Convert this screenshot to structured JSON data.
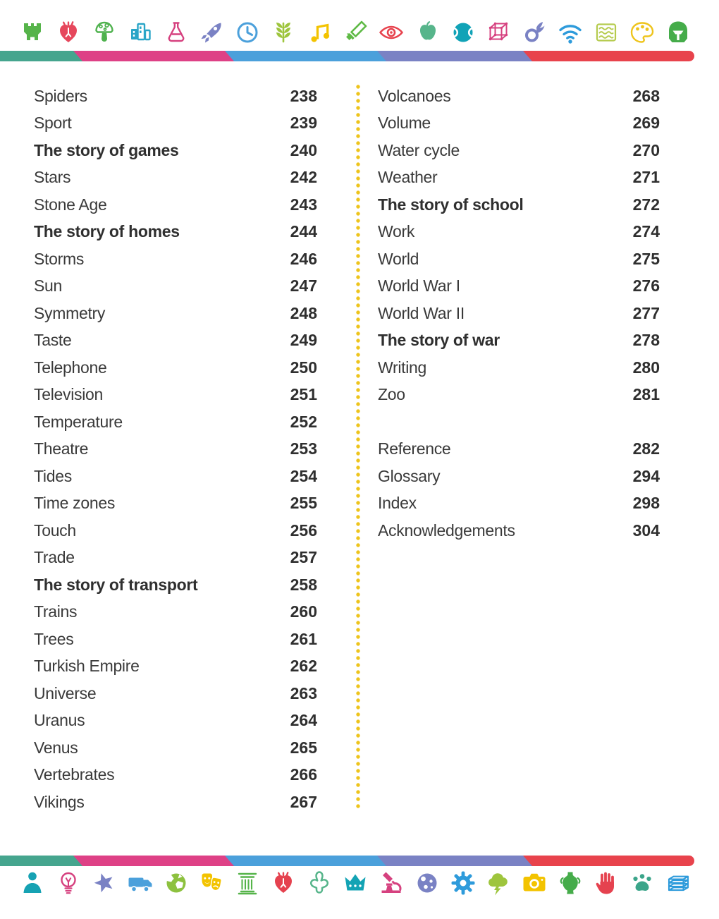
{
  "decor": {
    "stripe_colors": [
      "#45A58E",
      "#DE4186",
      "#4BA0DB",
      "#7A82C4",
      "#E8434C"
    ],
    "divider_dot_color": "#EEC41C"
  },
  "top_icons": [
    {
      "name": "castle",
      "color": "#56B44A"
    },
    {
      "name": "anatomical-heart",
      "color": "#E6475C"
    },
    {
      "name": "mushroom",
      "color": "#4FB24E"
    },
    {
      "name": "buildings",
      "color": "#29A5C7"
    },
    {
      "name": "flask",
      "color": "#D6417F"
    },
    {
      "name": "rocket",
      "color": "#7A82C4"
    },
    {
      "name": "clock",
      "color": "#4BA0DB"
    },
    {
      "name": "wheat",
      "color": "#9EC53D"
    },
    {
      "name": "music-note",
      "color": "#F3C300"
    },
    {
      "name": "sword",
      "color": "#5FBA46"
    },
    {
      "name": "eye",
      "color": "#E7434E"
    },
    {
      "name": "apple",
      "color": "#57B58B"
    },
    {
      "name": "ball",
      "color": "#11A3B7"
    },
    {
      "name": "cube",
      "color": "#D6417F"
    },
    {
      "name": "comet",
      "color": "#7A82C4"
    },
    {
      "name": "wifi",
      "color": "#2E9BDB"
    },
    {
      "name": "water-waves",
      "color": "#B5CB4D"
    },
    {
      "name": "palette",
      "color": "#EEC41C"
    },
    {
      "name": "helmet",
      "color": "#45AC4A"
    }
  ],
  "bottom_icons": [
    {
      "name": "person",
      "color": "#16A2B3"
    },
    {
      "name": "lightbulb",
      "color": "#D6417F"
    },
    {
      "name": "star",
      "color": "#7A82C4"
    },
    {
      "name": "truck",
      "color": "#4BA0DB"
    },
    {
      "name": "globe",
      "color": "#8DC13F"
    },
    {
      "name": "theatre-masks",
      "color": "#F3C300"
    },
    {
      "name": "column",
      "color": "#56B44A"
    },
    {
      "name": "anatomical-heart",
      "color": "#E5424F"
    },
    {
      "name": "footprint",
      "color": "#57B58B"
    },
    {
      "name": "crown",
      "color": "#13A3B4"
    },
    {
      "name": "microscope",
      "color": "#D6417F"
    },
    {
      "name": "moon",
      "color": "#7A82C4"
    },
    {
      "name": "gear",
      "color": "#2E9BDB"
    },
    {
      "name": "storm-cloud",
      "color": "#9EC53D"
    },
    {
      "name": "camera",
      "color": "#F3C300"
    },
    {
      "name": "vase",
      "color": "#45AC4A"
    },
    {
      "name": "hand",
      "color": "#E5424F"
    },
    {
      "name": "paw",
      "color": "#3BA58A"
    },
    {
      "name": "book-stack",
      "color": "#2E9BDB"
    }
  ],
  "toc": {
    "left_entries": [
      {
        "label": "Spiders",
        "page": "238",
        "bold": false
      },
      {
        "label": "Sport",
        "page": "239",
        "bold": false
      },
      {
        "label": "The story of games",
        "page": "240",
        "bold": true
      },
      {
        "label": "Stars",
        "page": "242",
        "bold": false
      },
      {
        "label": "Stone Age",
        "page": "243",
        "bold": false
      },
      {
        "label": "The story of homes",
        "page": "244",
        "bold": true
      },
      {
        "label": "Storms",
        "page": "246",
        "bold": false
      },
      {
        "label": "Sun",
        "page": "247",
        "bold": false
      },
      {
        "label": "Symmetry",
        "page": "248",
        "bold": false
      },
      {
        "label": "Taste",
        "page": "249",
        "bold": false
      },
      {
        "label": "Telephone",
        "page": "250",
        "bold": false
      },
      {
        "label": "Television",
        "page": "251",
        "bold": false
      },
      {
        "label": "Temperature",
        "page": "252",
        "bold": false
      },
      {
        "label": "Theatre",
        "page": "253",
        "bold": false
      },
      {
        "label": "Tides",
        "page": "254",
        "bold": false
      },
      {
        "label": "Time zones",
        "page": "255",
        "bold": false
      },
      {
        "label": "Touch",
        "page": "256",
        "bold": false
      },
      {
        "label": "Trade",
        "page": "257",
        "bold": false
      },
      {
        "label": "The story of transport",
        "page": "258",
        "bold": true
      },
      {
        "label": "Trains",
        "page": "260",
        "bold": false
      },
      {
        "label": "Trees",
        "page": "261",
        "bold": false
      },
      {
        "label": "Turkish Empire",
        "page": "262",
        "bold": false
      },
      {
        "label": "Universe",
        "page": "263",
        "bold": false
      },
      {
        "label": "Uranus",
        "page": "264",
        "bold": false
      },
      {
        "label": "Venus",
        "page": "265",
        "bold": false
      },
      {
        "label": "Vertebrates",
        "page": "266",
        "bold": false
      },
      {
        "label": "Vikings",
        "page": "267",
        "bold": false
      }
    ],
    "right_entries": [
      {
        "label": "Volcanoes",
        "page": "268",
        "bold": false
      },
      {
        "label": "Volume",
        "page": "269",
        "bold": false
      },
      {
        "label": "Water cycle",
        "page": "270",
        "bold": false
      },
      {
        "label": "Weather",
        "page": "271",
        "bold": false
      },
      {
        "label": "The story of school",
        "page": "272",
        "bold": true
      },
      {
        "label": "Work",
        "page": "274",
        "bold": false
      },
      {
        "label": "World",
        "page": "275",
        "bold": false
      },
      {
        "label": "World War I",
        "page": "276",
        "bold": false
      },
      {
        "label": "World War II",
        "page": "277",
        "bold": false
      },
      {
        "label": "The story of war",
        "page": "278",
        "bold": true
      },
      {
        "label": "Writing",
        "page": "280",
        "bold": false
      },
      {
        "label": "Zoo",
        "page": "281",
        "bold": false
      }
    ],
    "reference_entries": [
      {
        "label": "Reference",
        "page": "282",
        "bold": false
      },
      {
        "label": "Glossary",
        "page": "294",
        "bold": false
      },
      {
        "label": "Index",
        "page": "298",
        "bold": false
      },
      {
        "label": "Acknowledgements",
        "page": "304",
        "bold": false
      }
    ]
  }
}
